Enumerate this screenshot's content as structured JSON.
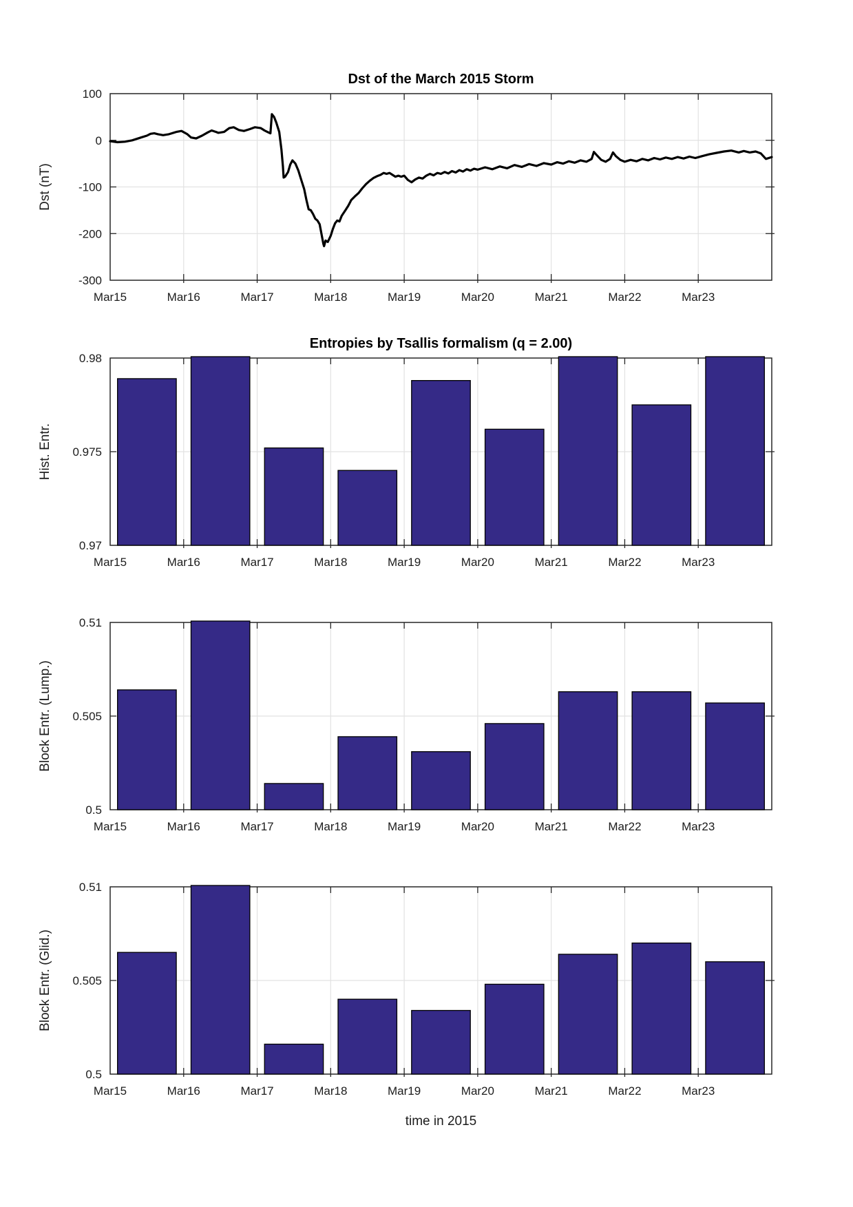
{
  "figure": {
    "x_tick_labels": [
      "Mar15",
      "Mar16",
      "Mar17",
      "Mar18",
      "Mar19",
      "Mar20",
      "Mar21",
      "Mar22",
      "Mar23"
    ],
    "x_span_days": 9,
    "xlabel": "time in 2015",
    "colors": {
      "bar_fill": "#352A87",
      "bar_edge": "#000000",
      "grid": "#E2E2E2",
      "axis": "#262626",
      "line": "#000000",
      "text": "#1C1C1C"
    }
  },
  "chart_data": [
    {
      "type": "line",
      "title": "Dst of the March 2015 Storm",
      "ylabel": "Dst (nT)",
      "xlabel": "",
      "ylim": [
        -300,
        100
      ],
      "ytick_values": [
        100,
        0,
        -100,
        -200,
        -300
      ],
      "ytick_labels": [
        "100",
        "0",
        "-100",
        "-200",
        "-300"
      ],
      "xlim_days": [
        0,
        9
      ],
      "grid": true,
      "series": [
        {
          "name": "Dst",
          "points": [
            [
              0,
              -2
            ],
            [
              0.1,
              -4
            ],
            [
              0.2,
              -3
            ],
            [
              0.3,
              0
            ],
            [
              0.42,
              6
            ],
            [
              0.5,
              10
            ],
            [
              0.55,
              14
            ],
            [
              0.6,
              15
            ],
            [
              0.65,
              13
            ],
            [
              0.72,
              11
            ],
            [
              0.8,
              13
            ],
            [
              0.9,
              18
            ],
            [
              0.97,
              20
            ],
            [
              1.05,
              13
            ],
            [
              1.1,
              6
            ],
            [
              1.17,
              4
            ],
            [
              1.25,
              10
            ],
            [
              1.33,
              17
            ],
            [
              1.38,
              21
            ],
            [
              1.44,
              18
            ],
            [
              1.47,
              16
            ],
            [
              1.55,
              18
            ],
            [
              1.62,
              26
            ],
            [
              1.68,
              28
            ],
            [
              1.75,
              22
            ],
            [
              1.82,
              20
            ],
            [
              1.9,
              24
            ],
            [
              1.97,
              28
            ],
            [
              2.05,
              26
            ],
            [
              2.1,
              21
            ],
            [
              2.15,
              17
            ],
            [
              2.18,
              15
            ],
            [
              2.2,
              56
            ],
            [
              2.23,
              50
            ],
            [
              2.26,
              38
            ],
            [
              2.3,
              18
            ],
            [
              2.33,
              -20
            ],
            [
              2.35,
              -55
            ],
            [
              2.36,
              -80
            ],
            [
              2.38,
              -78
            ],
            [
              2.42,
              -68
            ],
            [
              2.45,
              -52
            ],
            [
              2.48,
              -43
            ],
            [
              2.52,
              -50
            ],
            [
              2.56,
              -65
            ],
            [
              2.6,
              -85
            ],
            [
              2.64,
              -105
            ],
            [
              2.67,
              -128
            ],
            [
              2.7,
              -148
            ],
            [
              2.73,
              -150
            ],
            [
              2.76,
              -158
            ],
            [
              2.79,
              -168
            ],
            [
              2.82,
              -172
            ],
            [
              2.85,
              -180
            ],
            [
              2.88,
              -205
            ],
            [
              2.9,
              -222
            ],
            [
              2.91,
              -227
            ],
            [
              2.93,
              -215
            ],
            [
              2.96,
              -218
            ],
            [
              3.0,
              -205
            ],
            [
              3.03,
              -190
            ],
            [
              3.06,
              -178
            ],
            [
              3.09,
              -172
            ],
            [
              3.12,
              -174
            ],
            [
              3.15,
              -162
            ],
            [
              3.2,
              -150
            ],
            [
              3.24,
              -140
            ],
            [
              3.28,
              -128
            ],
            [
              3.33,
              -120
            ],
            [
              3.38,
              -113
            ],
            [
              3.43,
              -103
            ],
            [
              3.48,
              -94
            ],
            [
              3.53,
              -87
            ],
            [
              3.58,
              -81
            ],
            [
              3.63,
              -77
            ],
            [
              3.68,
              -74
            ],
            [
              3.72,
              -70
            ],
            [
              3.76,
              -72
            ],
            [
              3.8,
              -70
            ],
            [
              3.84,
              -74
            ],
            [
              3.88,
              -78
            ],
            [
              3.92,
              -76
            ],
            [
              3.96,
              -78
            ],
            [
              4.0,
              -76
            ],
            [
              4.05,
              -85
            ],
            [
              4.1,
              -90
            ],
            [
              4.15,
              -84
            ],
            [
              4.2,
              -80
            ],
            [
              4.25,
              -82
            ],
            [
              4.3,
              -76
            ],
            [
              4.35,
              -72
            ],
            [
              4.4,
              -75
            ],
            [
              4.45,
              -70
            ],
            [
              4.5,
              -72
            ],
            [
              4.55,
              -68
            ],
            [
              4.6,
              -71
            ],
            [
              4.65,
              -66
            ],
            [
              4.7,
              -69
            ],
            [
              4.75,
              -64
            ],
            [
              4.8,
              -67
            ],
            [
              4.85,
              -62
            ],
            [
              4.9,
              -65
            ],
            [
              4.95,
              -61
            ],
            [
              5.0,
              -63
            ],
            [
              5.1,
              -58
            ],
            [
              5.2,
              -62
            ],
            [
              5.3,
              -56
            ],
            [
              5.4,
              -60
            ],
            [
              5.5,
              -53
            ],
            [
              5.6,
              -57
            ],
            [
              5.7,
              -51
            ],
            [
              5.8,
              -55
            ],
            [
              5.9,
              -49
            ],
            [
              6.0,
              -52
            ],
            [
              6.08,
              -47
            ],
            [
              6.16,
              -50
            ],
            [
              6.24,
              -45
            ],
            [
              6.32,
              -48
            ],
            [
              6.4,
              -43
            ],
            [
              6.48,
              -46
            ],
            [
              6.55,
              -40
            ],
            [
              6.58,
              -25
            ],
            [
              6.62,
              -32
            ],
            [
              6.68,
              -42
            ],
            [
              6.74,
              -46
            ],
            [
              6.8,
              -40
            ],
            [
              6.84,
              -26
            ],
            [
              6.88,
              -34
            ],
            [
              6.94,
              -42
            ],
            [
              7.0,
              -46
            ],
            [
              7.08,
              -42
            ],
            [
              7.16,
              -45
            ],
            [
              7.24,
              -40
            ],
            [
              7.32,
              -43
            ],
            [
              7.4,
              -38
            ],
            [
              7.48,
              -41
            ],
            [
              7.56,
              -37
            ],
            [
              7.64,
              -40
            ],
            [
              7.72,
              -36
            ],
            [
              7.8,
              -39
            ],
            [
              7.88,
              -35
            ],
            [
              7.96,
              -38
            ],
            [
              8.05,
              -34
            ],
            [
              8.15,
              -30
            ],
            [
              8.25,
              -27
            ],
            [
              8.35,
              -24
            ],
            [
              8.45,
              -22
            ],
            [
              8.55,
              -26
            ],
            [
              8.62,
              -23
            ],
            [
              8.7,
              -26
            ],
            [
              8.78,
              -24
            ],
            [
              8.85,
              -28
            ],
            [
              8.92,
              -40
            ],
            [
              9.0,
              -36
            ]
          ]
        }
      ]
    },
    {
      "type": "bar",
      "title": "Entropies by Tsallis formalism (q = 2.00)",
      "ylabel": "Hist. Entr.",
      "ylim": [
        0.97,
        0.98
      ],
      "ytick_values": [
        0.98,
        0.975,
        0.97
      ],
      "ytick_labels": [
        "0.98",
        "0.975",
        "0.97"
      ],
      "categories": [
        "Mar15",
        "Mar16",
        "Mar17",
        "Mar18",
        "Mar19",
        "Mar20",
        "Mar21",
        "Mar22",
        "Mar23"
      ],
      "values": [
        0.9789,
        0.9803,
        0.9752,
        0.974,
        0.9788,
        0.9762,
        0.9804,
        0.9775,
        0.9805
      ],
      "bar_width_frac": 0.8,
      "grid": true
    },
    {
      "type": "bar",
      "title": "",
      "ylabel": "Block Entr. (Lump.)",
      "ylim": [
        0.5,
        0.51
      ],
      "ytick_values": [
        0.51,
        0.505,
        0.5
      ],
      "ytick_labels": [
        "0.51",
        "0.505",
        "0.5"
      ],
      "categories": [
        "Mar15",
        "Mar16",
        "Mar17",
        "Mar18",
        "Mar19",
        "Mar20",
        "Mar21",
        "Mar22",
        "Mar23"
      ],
      "values": [
        0.5064,
        0.5106,
        0.5014,
        0.5039,
        0.5031,
        0.5046,
        0.5063,
        0.5063,
        0.5057
      ],
      "bar_width_frac": 0.8,
      "grid": true
    },
    {
      "type": "bar",
      "title": "",
      "ylabel": "Block Entr. (Glid.)",
      "xlabel": "time in 2015",
      "ylim": [
        0.5,
        0.51
      ],
      "ytick_values": [
        0.51,
        0.505,
        0.5
      ],
      "ytick_labels": [
        "0.51",
        "0.505",
        "0.5"
      ],
      "categories": [
        "Mar15",
        "Mar16",
        "Mar17",
        "Mar18",
        "Mar19",
        "Mar20",
        "Mar21",
        "Mar22",
        "Mar23"
      ],
      "values": [
        0.5065,
        0.5106,
        0.5016,
        0.504,
        0.5034,
        0.5048,
        0.5064,
        0.507,
        0.506
      ],
      "bar_width_frac": 0.8,
      "grid": true
    }
  ]
}
